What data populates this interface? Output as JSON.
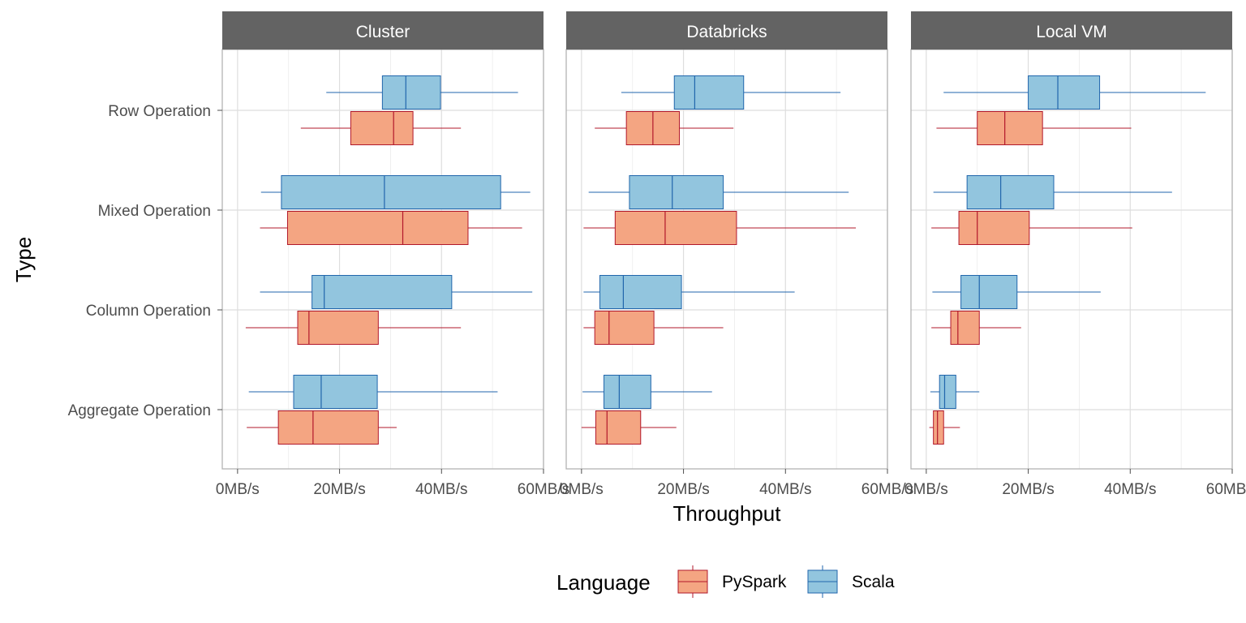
{
  "chart_data": {
    "type": "boxplot",
    "orientation": "horizontal",
    "xlabel": "Throughput",
    "ylabel": "Type",
    "xlim": [
      -3,
      60
    ],
    "x_ticks": [
      0,
      20,
      40,
      60
    ],
    "x_tick_labels": [
      "0MB/s",
      "20MB/s",
      "40MB/s",
      "60MB/s"
    ],
    "categories": [
      "Row Operation",
      "Mixed Operation",
      "Column Operation",
      "Aggregate Operation"
    ],
    "grid": true,
    "legend": {
      "title": "Language",
      "position": "bottom",
      "entries": [
        {
          "name": "PySpark",
          "fill": "#f4a582",
          "stroke": "#b2182b"
        },
        {
          "name": "Scala",
          "fill": "#92c5de",
          "stroke": "#2166ac"
        }
      ]
    },
    "series_colors": {
      "PySpark": {
        "fill": "#f4a582",
        "stroke": "#b2182b"
      },
      "Scala": {
        "fill": "#92c5de",
        "stroke": "#2166ac"
      }
    },
    "facets": [
      {
        "title": "Cluster",
        "boxes": {
          "Row Operation": {
            "Scala": {
              "min": 17.4,
              "q1": 28.4,
              "median": 33.0,
              "q3": 39.8,
              "max": 55.0
            },
            "PySpark": {
              "min": 12.4,
              "q1": 22.2,
              "median": 30.6,
              "q3": 34.4,
              "max": 43.8
            }
          },
          "Mixed Operation": {
            "Scala": {
              "min": 4.6,
              "q1": 8.6,
              "median": 28.8,
              "q3": 51.6,
              "max": 57.4
            },
            "PySpark": {
              "min": 4.4,
              "q1": 9.8,
              "median": 32.4,
              "q3": 45.2,
              "max": 55.8
            }
          },
          "Column Operation": {
            "Scala": {
              "min": 4.4,
              "q1": 14.6,
              "median": 17.0,
              "q3": 42.0,
              "max": 57.8
            },
            "PySpark": {
              "min": 1.6,
              "q1": 11.8,
              "median": 14.0,
              "q3": 27.6,
              "max": 43.8
            }
          },
          "Aggregate Operation": {
            "Scala": {
              "min": 2.2,
              "q1": 11.0,
              "median": 16.4,
              "q3": 27.4,
              "max": 51.0
            },
            "PySpark": {
              "min": 1.8,
              "q1": 8.0,
              "median": 14.8,
              "q3": 27.6,
              "max": 31.2
            }
          }
        }
      },
      {
        "title": "Databricks",
        "boxes": {
          "Row Operation": {
            "Scala": {
              "min": 7.8,
              "q1": 18.2,
              "median": 22.2,
              "q3": 31.8,
              "max": 50.8
            },
            "PySpark": {
              "min": 2.6,
              "q1": 8.8,
              "median": 14.0,
              "q3": 19.2,
              "max": 29.8
            }
          },
          "Mixed Operation": {
            "Scala": {
              "min": 1.4,
              "q1": 9.4,
              "median": 17.8,
              "q3": 27.8,
              "max": 52.4
            },
            "PySpark": {
              "min": 0.4,
              "q1": 6.6,
              "median": 16.4,
              "q3": 30.4,
              "max": 53.8
            }
          },
          "Column Operation": {
            "Scala": {
              "min": 0.4,
              "q1": 3.6,
              "median": 8.2,
              "q3": 19.6,
              "max": 41.8
            },
            "PySpark": {
              "min": 0.4,
              "q1": 2.6,
              "median": 5.4,
              "q3": 14.2,
              "max": 27.8
            }
          },
          "Aggregate Operation": {
            "Scala": {
              "min": 0.2,
              "q1": 4.4,
              "median": 7.4,
              "q3": 13.6,
              "max": 25.6
            },
            "PySpark": {
              "min": 0.0,
              "q1": 2.8,
              "median": 5.0,
              "q3": 11.6,
              "max": 18.6
            }
          }
        }
      },
      {
        "title": "Local VM",
        "boxes": {
          "Row Operation": {
            "Scala": {
              "min": 3.4,
              "q1": 20.0,
              "median": 25.8,
              "q3": 34.0,
              "max": 54.8
            },
            "PySpark": {
              "min": 2.0,
              "q1": 10.0,
              "median": 15.4,
              "q3": 22.8,
              "max": 40.2
            }
          },
          "Mixed Operation": {
            "Scala": {
              "min": 1.4,
              "q1": 8.0,
              "median": 14.6,
              "q3": 25.0,
              "max": 48.2
            },
            "PySpark": {
              "min": 1.0,
              "q1": 6.4,
              "median": 10.0,
              "q3": 20.2,
              "max": 40.4
            }
          },
          "Column Operation": {
            "Scala": {
              "min": 1.2,
              "q1": 6.8,
              "median": 10.4,
              "q3": 17.8,
              "max": 34.2
            },
            "PySpark": {
              "min": 1.0,
              "q1": 4.8,
              "median": 6.2,
              "q3": 10.4,
              "max": 18.6
            }
          },
          "Aggregate Operation": {
            "Scala": {
              "min": 0.8,
              "q1": 2.6,
              "median": 3.6,
              "q3": 5.8,
              "max": 10.4
            },
            "PySpark": {
              "min": 0.6,
              "q1": 1.4,
              "median": 2.2,
              "q3": 3.4,
              "max": 6.6
            }
          }
        }
      }
    ]
  }
}
